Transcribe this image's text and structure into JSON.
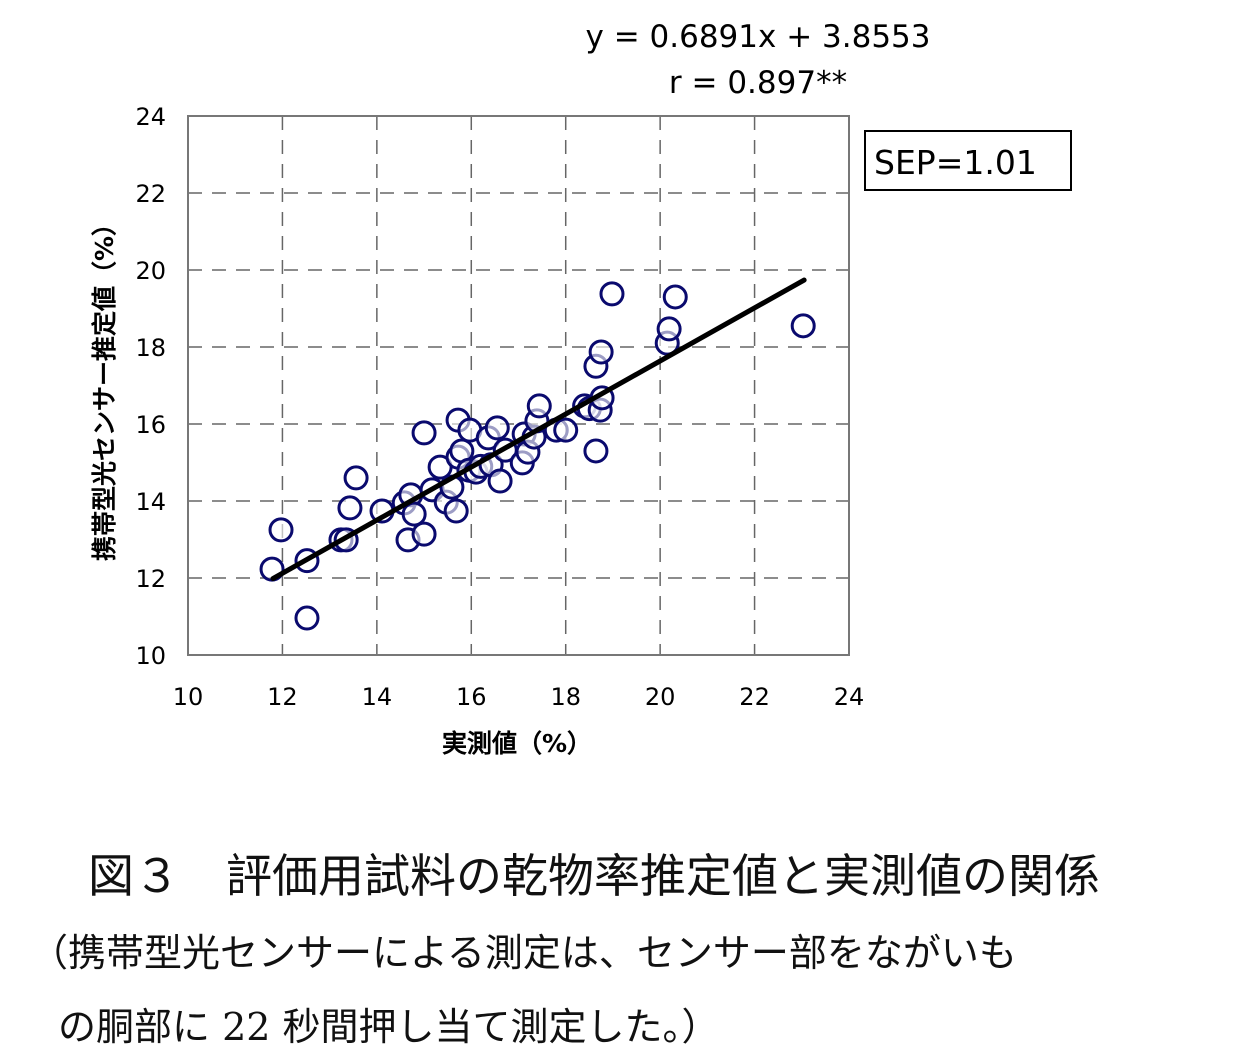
{
  "chart_data": {
    "type": "scatter",
    "equation": "y = 0.6891x + 3.8553",
    "r_label": "r = 0.897**",
    "sep_label": "SEP=1.01",
    "xlabel": "実測値（%）",
    "ylabel": "携帯型光センサー推定値（%）",
    "xlim": [
      10,
      24
    ],
    "ylim": [
      10,
      24
    ],
    "xticks": [
      10,
      12,
      14,
      16,
      18,
      20,
      22,
      24
    ],
    "yticks": [
      10,
      12,
      14,
      16,
      18,
      20,
      22,
      24
    ],
    "grid": true,
    "regression": {
      "slope": 0.6891,
      "intercept": 3.8553,
      "x_range": [
        11.8,
        23.05
      ]
    },
    "marker_color": "#0a0a6e",
    "points": [
      [
        11.78,
        12.23
      ],
      [
        11.97,
        13.25
      ],
      [
        12.52,
        12.45
      ],
      [
        12.52,
        10.96
      ],
      [
        13.24,
        12.99
      ],
      [
        13.35,
        12.99
      ],
      [
        13.43,
        13.82
      ],
      [
        13.56,
        14.6
      ],
      [
        14.11,
        13.74
      ],
      [
        14.58,
        13.95
      ],
      [
        14.66,
        12.99
      ],
      [
        14.72,
        14.16
      ],
      [
        14.79,
        13.66
      ],
      [
        15.0,
        13.14
      ],
      [
        15.0,
        15.77
      ],
      [
        15.17,
        14.29
      ],
      [
        15.34,
        14.88
      ],
      [
        15.47,
        13.97
      ],
      [
        15.59,
        14.36
      ],
      [
        15.68,
        13.74
      ],
      [
        15.72,
        16.1
      ],
      [
        15.72,
        15.14
      ],
      [
        15.8,
        15.3
      ],
      [
        15.97,
        15.84
      ],
      [
        15.95,
        14.8
      ],
      [
        16.1,
        14.75
      ],
      [
        16.2,
        14.9
      ],
      [
        16.36,
        15.64
      ],
      [
        16.42,
        14.94
      ],
      [
        16.55,
        15.9
      ],
      [
        16.61,
        14.52
      ],
      [
        16.72,
        15.32
      ],
      [
        17.08,
        14.99
      ],
      [
        17.12,
        15.74
      ],
      [
        17.2,
        15.27
      ],
      [
        17.33,
        15.66
      ],
      [
        17.39,
        16.08
      ],
      [
        17.44,
        16.47
      ],
      [
        17.8,
        15.84
      ],
      [
        18.0,
        15.84
      ],
      [
        18.4,
        16.47
      ],
      [
        18.5,
        16.4
      ],
      [
        18.64,
        15.3
      ],
      [
        18.64,
        17.5
      ],
      [
        18.75,
        17.87
      ],
      [
        18.73,
        16.36
      ],
      [
        18.77,
        16.68
      ],
      [
        18.98,
        19.38
      ],
      [
        20.15,
        18.1
      ],
      [
        20.19,
        18.47
      ],
      [
        20.32,
        19.3
      ],
      [
        23.03,
        18.55
      ]
    ]
  },
  "caption": {
    "title": "図３　評価用試料の乾物率推定値と実測値の関係",
    "note_line1": "（携帯型光センサーによる測定は、センサー部をながいも",
    "note_line2": "の胴部に 22 秒間押し当て測定した。）"
  }
}
